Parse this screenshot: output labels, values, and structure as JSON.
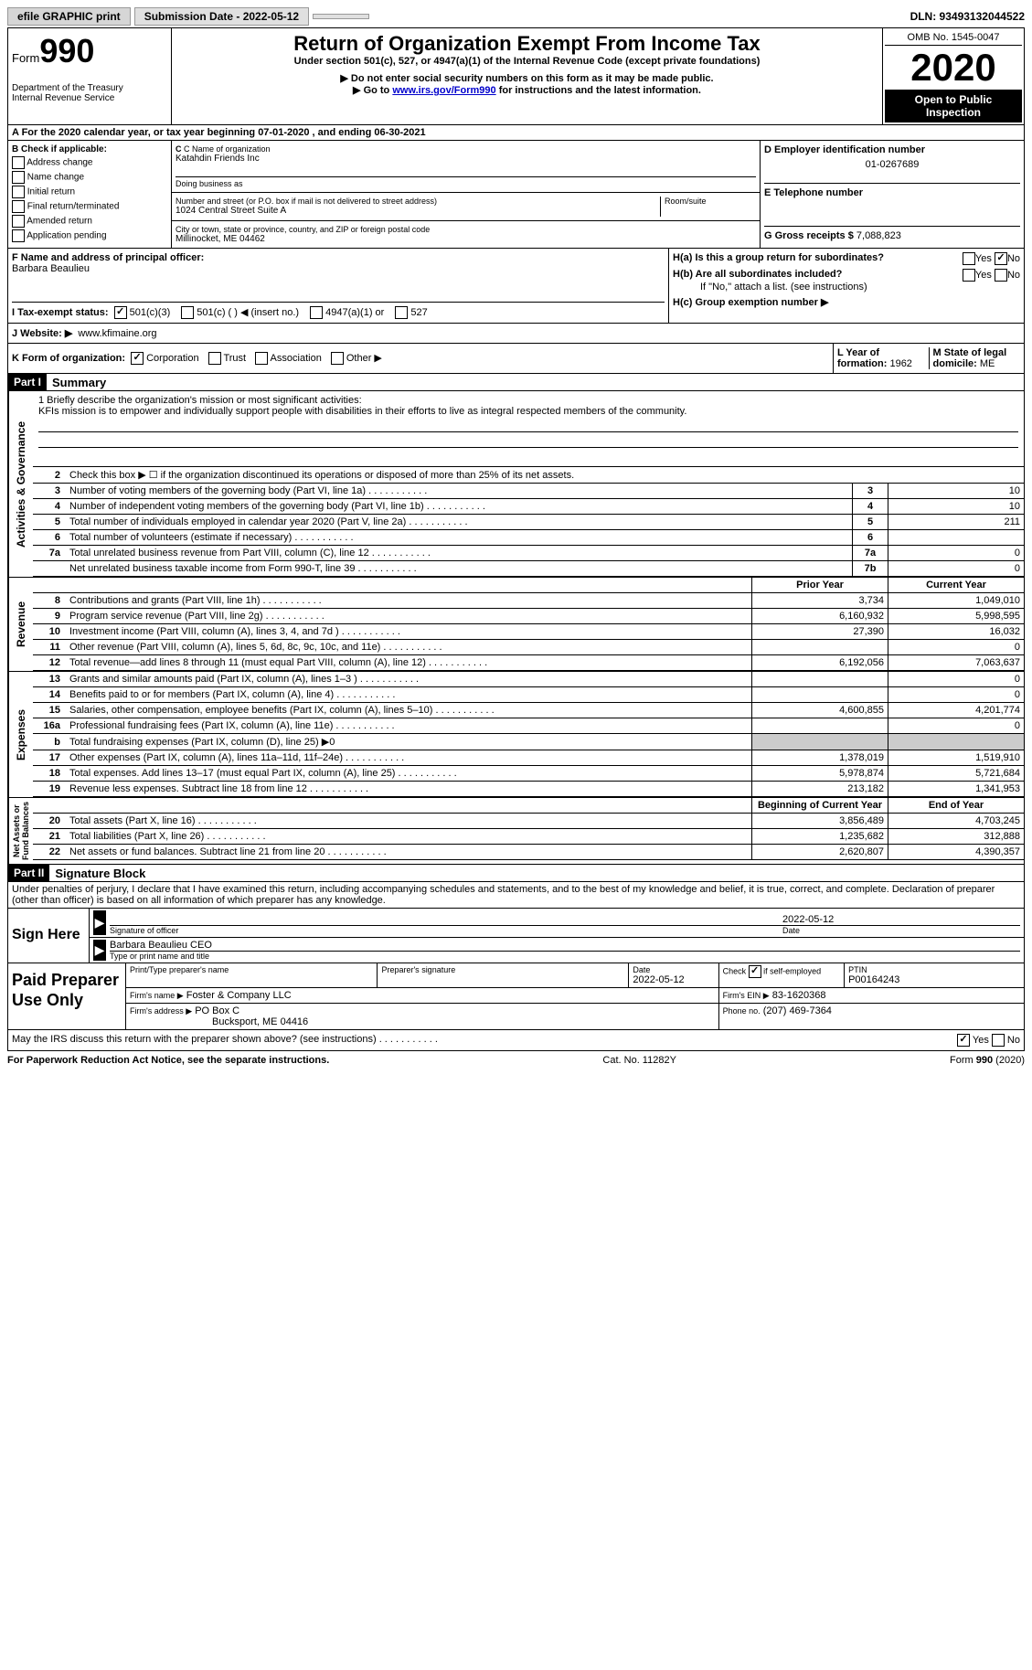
{
  "topbar": {
    "efile_btn": "efile GRAPHIC print",
    "submission_btn": "Submission Date - 2022-05-12",
    "dln": "DLN: 93493132044522"
  },
  "header": {
    "form_label": "Form",
    "form_number": "990",
    "dept": "Department of the Treasury\nInternal Revenue Service",
    "title": "Return of Organization Exempt From Income Tax",
    "subtitle": "Under section 501(c), 527, or 4947(a)(1) of the Internal Revenue Code (except private foundations)",
    "note1": "▶ Do not enter social security numbers on this form as it may be made public.",
    "note2_pre": "▶ Go to ",
    "note2_link": "www.irs.gov/Form990",
    "note2_post": " for instructions and the latest information.",
    "omb": "OMB No. 1545-0047",
    "year": "2020",
    "open": "Open to Public Inspection"
  },
  "row_a": "A For the 2020 calendar year, or tax year beginning 07-01-2020   , and ending 06-30-2021",
  "box_b": {
    "title": "B Check if applicable:",
    "items": [
      "Address change",
      "Name change",
      "Initial return",
      "Final return/terminated",
      "Amended return",
      "Application pending"
    ]
  },
  "box_c": {
    "label_name": "C Name of organization",
    "name": "Katahdin Friends Inc",
    "dba_label": "Doing business as",
    "addr_label": "Number and street (or P.O. box if mail is not delivered to street address)",
    "room_label": "Room/suite",
    "addr": "1024 Central Street Suite A",
    "city_label": "City or town, state or province, country, and ZIP or foreign postal code",
    "city": "Millinocket, ME  04462"
  },
  "box_d": {
    "label": "D Employer identification number",
    "ein": "01-0267689",
    "phone_label": "E Telephone number",
    "gross_label": "G Gross receipts $",
    "gross": "7,088,823"
  },
  "box_f": {
    "label": "F  Name and address of principal officer:",
    "name": "Barbara Beaulieu"
  },
  "box_h": {
    "ha": "H(a)  Is this a group return for subordinates?",
    "hb": "H(b)  Are all subordinates included?",
    "hb_note": "If \"No,\" attach a list. (see instructions)",
    "hc": "H(c)  Group exemption number ▶",
    "yes": "Yes",
    "no": "No"
  },
  "box_i": {
    "label": "I   Tax-exempt status:",
    "opts": [
      "501(c)(3)",
      "501(c) (   ) ◀ (insert no.)",
      "4947(a)(1) or",
      "527"
    ]
  },
  "box_j": {
    "label": "J   Website: ▶",
    "val": "www.kfimaine.org"
  },
  "box_k": {
    "label": "K Form of organization:",
    "opts": [
      "Corporation",
      "Trust",
      "Association",
      "Other ▶"
    ]
  },
  "box_l": {
    "label": "L Year of formation:",
    "val": "1962"
  },
  "box_m": {
    "label": "M State of legal domicile:",
    "val": "ME"
  },
  "part1": {
    "header": "Part I",
    "title": "Summary"
  },
  "mission": {
    "label": "1 Briefly describe the organization's mission or most significant activities:",
    "text": "KFIs mission is to empower and individually support people with disabilities in their efforts to live as integral respected members of the community."
  },
  "line2": "Check this box ▶ ☐  if the organization discontinued its operations or disposed of more than 25% of its net assets.",
  "governance_lines": [
    {
      "n": "3",
      "text": "Number of voting members of the governing body (Part VI, line 1a)",
      "box": "3",
      "val": "10"
    },
    {
      "n": "4",
      "text": "Number of independent voting members of the governing body (Part VI, line 1b)",
      "box": "4",
      "val": "10"
    },
    {
      "n": "5",
      "text": "Total number of individuals employed in calendar year 2020 (Part V, line 2a)",
      "box": "5",
      "val": "211"
    },
    {
      "n": "6",
      "text": "Total number of volunteers (estimate if necessary)",
      "box": "6",
      "val": ""
    },
    {
      "n": "7a",
      "text": "Total unrelated business revenue from Part VIII, column (C), line 12",
      "box": "7a",
      "val": "0"
    },
    {
      "n": "",
      "text": "Net unrelated business taxable income from Form 990-T, line 39",
      "box": "7b",
      "val": "0"
    }
  ],
  "col_headers": {
    "py": "Prior Year",
    "cy": "Current Year"
  },
  "revenue_label": "Revenue",
  "revenue_lines": [
    {
      "n": "8",
      "text": "Contributions and grants (Part VIII, line 1h)",
      "py": "3,734",
      "cy": "1,049,010"
    },
    {
      "n": "9",
      "text": "Program service revenue (Part VIII, line 2g)",
      "py": "6,160,932",
      "cy": "5,998,595"
    },
    {
      "n": "10",
      "text": "Investment income (Part VIII, column (A), lines 3, 4, and 7d )",
      "py": "27,390",
      "cy": "16,032"
    },
    {
      "n": "11",
      "text": "Other revenue (Part VIII, column (A), lines 5, 6d, 8c, 9c, 10c, and 11e)",
      "py": "",
      "cy": "0"
    },
    {
      "n": "12",
      "text": "Total revenue—add lines 8 through 11 (must equal Part VIII, column (A), line 12)",
      "py": "6,192,056",
      "cy": "7,063,637"
    }
  ],
  "expenses_label": "Expenses",
  "expenses_lines": [
    {
      "n": "13",
      "text": "Grants and similar amounts paid (Part IX, column (A), lines 1–3 )",
      "py": "",
      "cy": "0"
    },
    {
      "n": "14",
      "text": "Benefits paid to or for members (Part IX, column (A), line 4)",
      "py": "",
      "cy": "0"
    },
    {
      "n": "15",
      "text": "Salaries, other compensation, employee benefits (Part IX, column (A), lines 5–10)",
      "py": "4,600,855",
      "cy": "4,201,774"
    },
    {
      "n": "16a",
      "text": "Professional fundraising fees (Part IX, column (A), line 11e)",
      "py": "",
      "cy": "0"
    },
    {
      "n": "b",
      "text": "Total fundraising expenses (Part IX, column (D), line 25) ▶0",
      "py": "SHADED",
      "cy": "SHADED"
    },
    {
      "n": "17",
      "text": "Other expenses (Part IX, column (A), lines 11a–11d, 11f–24e)",
      "py": "1,378,019",
      "cy": "1,519,910"
    },
    {
      "n": "18",
      "text": "Total expenses. Add lines 13–17 (must equal Part IX, column (A), line 25)",
      "py": "5,978,874",
      "cy": "5,721,684"
    },
    {
      "n": "19",
      "text": "Revenue less expenses. Subtract line 18 from line 12",
      "py": "213,182",
      "cy": "1,341,953"
    }
  ],
  "net_label": "Net Assets or\nFund Balances",
  "net_headers": {
    "b": "Beginning of Current Year",
    "e": "End of Year"
  },
  "net_lines": [
    {
      "n": "20",
      "text": "Total assets (Part X, line 16)",
      "b": "3,856,489",
      "e": "4,703,245"
    },
    {
      "n": "21",
      "text": "Total liabilities (Part X, line 26)",
      "b": "1,235,682",
      "e": "312,888"
    },
    {
      "n": "22",
      "text": "Net assets or fund balances. Subtract line 21 from line 20",
      "b": "2,620,807",
      "e": "4,390,357"
    }
  ],
  "part2": {
    "header": "Part II",
    "title": "Signature Block"
  },
  "penalties": "Under penalties of perjury, I declare that I have examined this return, including accompanying schedules and statements, and to the best of my knowledge and belief, it is true, correct, and complete. Declaration of preparer (other than officer) is based on all information of which preparer has any knowledge.",
  "sign": {
    "label": "Sign Here",
    "sig_label": "Signature of officer",
    "date_label": "Date",
    "date": "2022-05-12",
    "name": "Barbara Beaulieu CEO",
    "name_label": "Type or print name and title"
  },
  "paid": {
    "label": "Paid Preparer Use Only",
    "h1": "Print/Type preparer's name",
    "h2": "Preparer's signature",
    "h3": "Date",
    "h3v": "2022-05-12",
    "h4": "Check ☑ if self-employed",
    "h5": "PTIN",
    "h5v": "P00164243",
    "firm_label": "Firm's name   ▶",
    "firm": "Foster & Company LLC",
    "ein_label": "Firm's EIN ▶",
    "ein": "83-1620368",
    "addr_label": "Firm's address ▶",
    "addr": "PO Box C",
    "addr2": "Bucksport, ME  04416",
    "phone_label": "Phone no.",
    "phone": "(207) 469-7364"
  },
  "may_irs": "May the IRS discuss this return with the preparer shown above? (see instructions)",
  "footer": {
    "left": "For Paperwork Reduction Act Notice, see the separate instructions.",
    "mid": "Cat. No. 11282Y",
    "right": "Form 990 (2020)"
  }
}
